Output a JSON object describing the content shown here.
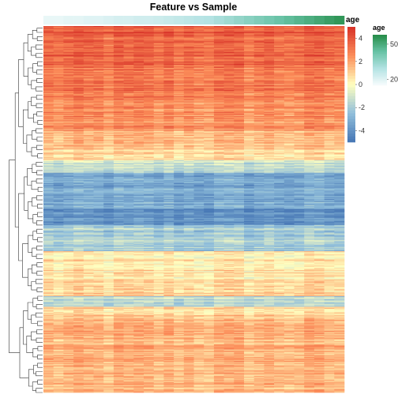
{
  "chart_data": {
    "type": "heatmap",
    "title": "Feature vs Sample",
    "annotation_label": "age",
    "n_samples": 30,
    "n_features": 350,
    "sample_age_annotation": [
      18,
      18,
      19,
      19,
      20,
      20,
      21,
      22,
      22,
      23,
      23,
      24,
      25,
      26,
      27,
      28,
      29,
      31,
      33,
      35,
      37,
      39,
      41,
      43,
      45,
      47,
      49,
      51,
      53,
      55
    ],
    "feature_value_profile": [
      {
        "feature_range": [
          0,
          10
        ],
        "value": 3.9
      },
      {
        "feature_range": [
          10,
          40
        ],
        "value": 3.5
      },
      {
        "feature_range": [
          40,
          70
        ],
        "value": 3.0
      },
      {
        "feature_range": [
          70,
          100
        ],
        "value": 2.4
      },
      {
        "feature_range": [
          100,
          115
        ],
        "value": 1.6
      },
      {
        "feature_range": [
          115,
          128
        ],
        "value": 0.9
      },
      {
        "feature_range": [
          128,
          140
        ],
        "value": -1.2
      },
      {
        "feature_range": [
          140,
          175
        ],
        "value": -3.3
      },
      {
        "feature_range": [
          175,
          190
        ],
        "value": -4.2
      },
      {
        "feature_range": [
          190,
          215
        ],
        "value": -2.0
      },
      {
        "feature_range": [
          215,
          242
        ],
        "value": 0.4
      },
      {
        "feature_range": [
          242,
          258
        ],
        "value": 0.9
      },
      {
        "feature_range": [
          258,
          268
        ],
        "value": -1.6
      },
      {
        "feature_range": [
          268,
          280
        ],
        "value": 0.8
      },
      {
        "feature_range": [
          280,
          350
        ],
        "value": 1.6
      }
    ],
    "heatmap_color_scale": {
      "ticks": [
        -4,
        -2,
        0,
        2,
        4
      ],
      "tick_labels": [
        "-4",
        "-2",
        "0",
        "2",
        "4"
      ],
      "range": [
        -5,
        5
      ],
      "colors": [
        "#4575b4",
        "#91bfdb",
        "#ffffbf",
        "#fc8d59",
        "#d73027"
      ]
    },
    "age_color_scale": {
      "ticks": [
        20,
        50
      ],
      "tick_labels": [
        "20",
        "50"
      ],
      "range": [
        15,
        58
      ],
      "colors": [
        "#f7fcfd",
        "#b2e2e2",
        "#66c2a4",
        "#238b45"
      ]
    },
    "row_dendrogram": true,
    "legend_placement": "right"
  }
}
